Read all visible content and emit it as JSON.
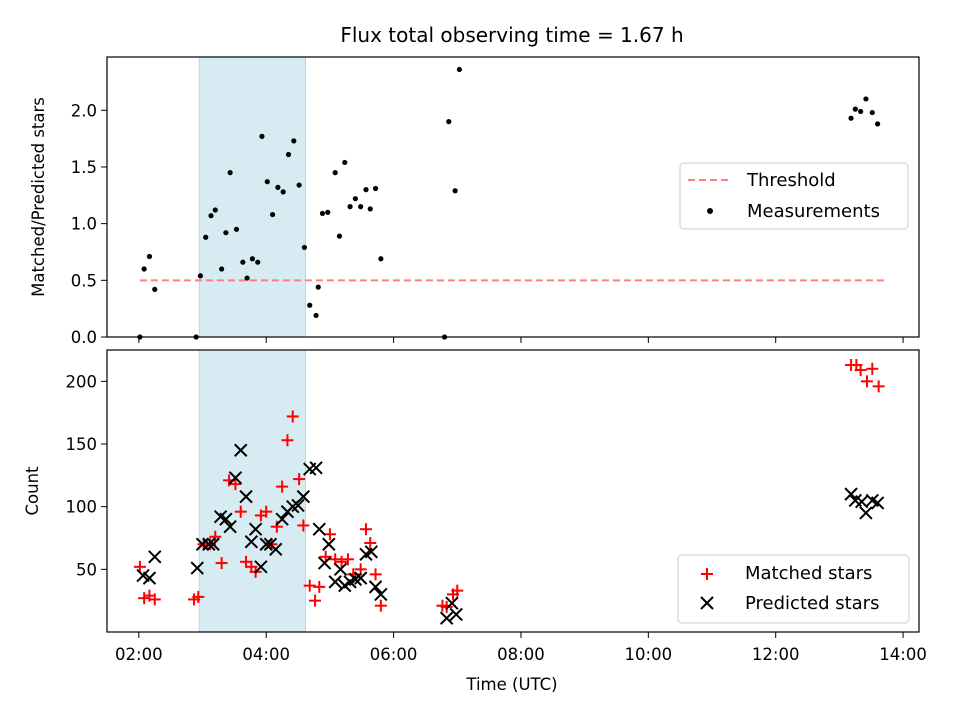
{
  "chart_data": [
    {
      "type": "scatter",
      "title": "Flux total observing time = 1.67 h",
      "ylabel": "Matched/Predicted stars",
      "xlabel": "",
      "xlim": [
        "01:30",
        "14:15"
      ],
      "ylim": [
        0,
        2.47
      ],
      "yticks": [
        "0.0",
        "0.5",
        "1.0",
        "1.5",
        "2.0"
      ],
      "xtick_labels_shown": false,
      "shaded_region": {
        "start": "02:57",
        "end": "04:37",
        "color": "#add8e6"
      },
      "legend": {
        "placement": "center-right",
        "entries": [
          {
            "label": "Threshold",
            "style": "dashed-line",
            "color": "#ff7f7f"
          },
          {
            "label": "Measurements",
            "style": "dot",
            "color": "#000000"
          }
        ]
      },
      "series": [
        {
          "name": "Threshold",
          "kind": "hline",
          "color": "#ff7f7f",
          "x": [
            "02:01",
            "13:45"
          ],
          "y": [
            0.5,
            0.5
          ]
        },
        {
          "name": "Measurements",
          "kind": "points",
          "color": "#000000",
          "points": [
            [
              "02:01",
              0.0
            ],
            [
              "02:05",
              0.6
            ],
            [
              "02:10",
              0.71
            ],
            [
              "02:15",
              0.42
            ],
            [
              "02:54",
              0.0
            ],
            [
              "02:58",
              0.54
            ],
            [
              "03:03",
              0.88
            ],
            [
              "03:08",
              1.07
            ],
            [
              "03:12",
              1.12
            ],
            [
              "03:18",
              0.6
            ],
            [
              "03:22",
              0.92
            ],
            [
              "03:26",
              1.45
            ],
            [
              "03:32",
              0.95
            ],
            [
              "03:38",
              0.66
            ],
            [
              "03:42",
              0.52
            ],
            [
              "03:47",
              0.69
            ],
            [
              "03:52",
              0.66
            ],
            [
              "03:56",
              1.77
            ],
            [
              "04:01",
              1.37
            ],
            [
              "04:06",
              1.08
            ],
            [
              "04:11",
              1.32
            ],
            [
              "04:16",
              1.28
            ],
            [
              "04:21",
              1.61
            ],
            [
              "04:26",
              1.73
            ],
            [
              "04:31",
              1.34
            ],
            [
              "04:36",
              0.79
            ],
            [
              "04:41",
              0.28
            ],
            [
              "04:47",
              0.19
            ],
            [
              "04:49",
              0.44
            ],
            [
              "04:53",
              1.09
            ],
            [
              "04:58",
              1.1
            ],
            [
              "05:05",
              1.45
            ],
            [
              "05:09",
              0.89
            ],
            [
              "05:14",
              1.54
            ],
            [
              "05:19",
              1.15
            ],
            [
              "05:24",
              1.22
            ],
            [
              "05:29",
              1.15
            ],
            [
              "05:34",
              1.3
            ],
            [
              "05:38",
              1.13
            ],
            [
              "05:43",
              1.31
            ],
            [
              "05:48",
              0.69
            ],
            [
              "06:48",
              0.0
            ],
            [
              "06:52",
              1.9
            ],
            [
              "06:58",
              1.29
            ],
            [
              "07:02",
              2.36
            ],
            [
              "13:11",
              1.93
            ],
            [
              "13:15",
              2.01
            ],
            [
              "13:20",
              1.99
            ],
            [
              "13:25",
              2.1
            ],
            [
              "13:31",
              1.98
            ],
            [
              "13:36",
              1.88
            ]
          ]
        }
      ]
    },
    {
      "type": "scatter",
      "title": "",
      "ylabel": "Count",
      "xlabel": "Time (UTC)",
      "xlim": [
        "01:30",
        "14:15"
      ],
      "ylim": [
        0,
        225
      ],
      "yticks": [
        "50",
        "100",
        "150",
        "200"
      ],
      "xticks": [
        "02:00",
        "04:00",
        "06:00",
        "08:00",
        "10:00",
        "12:00",
        "14:00"
      ],
      "shaded_region": {
        "start": "02:57",
        "end": "04:37",
        "color": "#add8e6"
      },
      "legend": {
        "placement": "lower-right",
        "entries": [
          {
            "label": "Matched stars",
            "style": "plus",
            "color": "#ff0000"
          },
          {
            "label": "Predicted stars",
            "style": "cross",
            "color": "#000000"
          }
        ]
      },
      "series": [
        {
          "name": "Matched stars",
          "marker": "plus",
          "color": "#ff0000",
          "points": [
            [
              "02:01",
              52
            ],
            [
              "02:05",
              27
            ],
            [
              "02:10",
              29
            ],
            [
              "02:15",
              26
            ],
            [
              "02:52",
              26
            ],
            [
              "02:56",
              28
            ],
            [
              "03:01",
              70
            ],
            [
              "03:07",
              70
            ],
            [
              "03:12",
              76
            ],
            [
              "03:18",
              55
            ],
            [
              "03:25",
              121
            ],
            [
              "03:31",
              118
            ],
            [
              "03:36",
              96
            ],
            [
              "03:41",
              56
            ],
            [
              "03:46",
              52
            ],
            [
              "03:50",
              48
            ],
            [
              "03:55",
              93
            ],
            [
              "04:00",
              96
            ],
            [
              "04:05",
              70
            ],
            [
              "04:10",
              84
            ],
            [
              "04:15",
              116
            ],
            [
              "04:20",
              153
            ],
            [
              "04:25",
              172
            ],
            [
              "04:31",
              122
            ],
            [
              "04:35",
              85
            ],
            [
              "04:41",
              37
            ],
            [
              "04:46",
              25
            ],
            [
              "04:50",
              36
            ],
            [
              "04:56",
              60
            ],
            [
              "05:00",
              78
            ],
            [
              "05:05",
              58
            ],
            [
              "05:11",
              56
            ],
            [
              "05:17",
              58
            ],
            [
              "05:22",
              46
            ],
            [
              "05:29",
              50
            ],
            [
              "05:34",
              82
            ],
            [
              "05:38",
              71
            ],
            [
              "05:43",
              46
            ],
            [
              "05:48",
              21
            ],
            [
              "06:46",
              21
            ],
            [
              "06:50",
              20
            ],
            [
              "06:56",
              30
            ],
            [
              "07:00",
              33
            ],
            [
              "13:11",
              213
            ],
            [
              "13:16",
              213
            ],
            [
              "13:20",
              209
            ],
            [
              "13:26",
              200
            ],
            [
              "13:31",
              210
            ],
            [
              "13:37",
              196
            ]
          ]
        },
        {
          "name": "Predicted stars",
          "marker": "cross",
          "color": "#000000",
          "points": [
            [
              "02:04",
              45
            ],
            [
              "02:10",
              43
            ],
            [
              "02:15",
              60
            ],
            [
              "02:55",
              51
            ],
            [
              "03:00",
              70
            ],
            [
              "03:06",
              70
            ],
            [
              "03:10",
              70
            ],
            [
              "03:17",
              92
            ],
            [
              "03:22",
              90
            ],
            [
              "03:26",
              84
            ],
            [
              "03:31",
              123
            ],
            [
              "03:36",
              145
            ],
            [
              "03:41",
              108
            ],
            [
              "03:46",
              72
            ],
            [
              "03:50",
              82
            ],
            [
              "03:55",
              52
            ],
            [
              "04:00",
              70
            ],
            [
              "04:04",
              70
            ],
            [
              "04:09",
              66
            ],
            [
              "04:15",
              90
            ],
            [
              "04:20",
              96
            ],
            [
              "04:25",
              100
            ],
            [
              "04:30",
              101
            ],
            [
              "04:35",
              108
            ],
            [
              "04:41",
              130
            ],
            [
              "04:47",
              131
            ],
            [
              "04:50",
              82
            ],
            [
              "04:55",
              55
            ],
            [
              "04:59",
              70
            ],
            [
              "05:05",
              40
            ],
            [
              "05:10",
              50
            ],
            [
              "05:14",
              37
            ],
            [
              "05:19",
              40
            ],
            [
              "05:24",
              42
            ],
            [
              "05:29",
              43
            ],
            [
              "05:34",
              62
            ],
            [
              "05:39",
              64
            ],
            [
              "05:43",
              36
            ],
            [
              "05:48",
              30
            ],
            [
              "06:50",
              11
            ],
            [
              "06:55",
              23
            ],
            [
              "06:59",
              14
            ],
            [
              "13:11",
              110
            ],
            [
              "13:15",
              105
            ],
            [
              "13:21",
              104
            ],
            [
              "13:25",
              95
            ],
            [
              "13:31",
              105
            ],
            [
              "13:36",
              103
            ]
          ]
        }
      ]
    }
  ]
}
